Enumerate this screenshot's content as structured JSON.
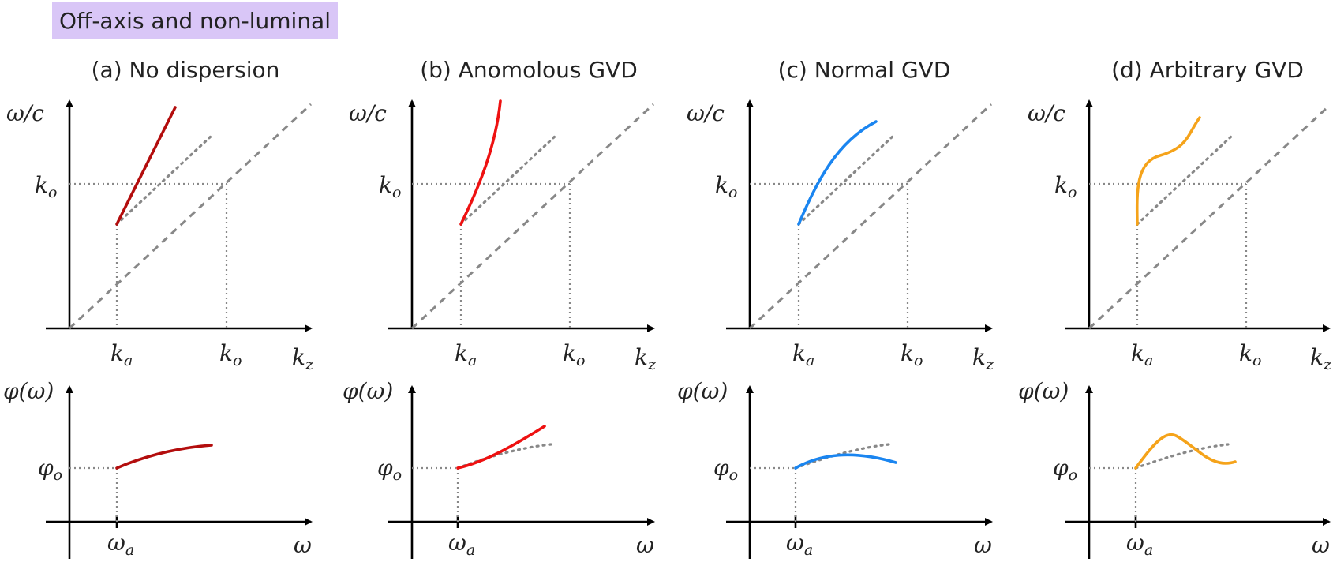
{
  "banner": "Off-axis and non-luminal",
  "labels": {
    "omega_over_c": "ω/c",
    "k": "k",
    "sub_o": "o",
    "sub_a": "a",
    "sub_z": "z",
    "phi_of_omega": "φ(ω)",
    "phi": "φ",
    "omega": "ω"
  },
  "colors": {
    "no_dispersion": "#b30d0d",
    "anomalous": "#ee1111",
    "normal": "#1a85f0",
    "arbitrary": "#f5a31a",
    "guides": "#888888"
  },
  "panels": [
    {
      "id": "a",
      "title": "(a) No dispersion",
      "color": "#b30d0d"
    },
    {
      "id": "b",
      "title": "(b) Anomolous GVD",
      "color": "#ee1111"
    },
    {
      "id": "c",
      "title": "(c) Normal GVD",
      "color": "#1a85f0"
    },
    {
      "id": "d",
      "title": "(d) Arbitrary GVD",
      "color": "#f5a31a"
    }
  ]
}
